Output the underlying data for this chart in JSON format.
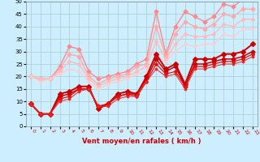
{
  "xlabel": "Vent moyen/en rafales ( km/h )",
  "xlim": [
    -0.5,
    23.5
  ],
  "ylim": [
    0,
    50
  ],
  "xticks": [
    0,
    1,
    2,
    3,
    4,
    5,
    6,
    7,
    8,
    9,
    10,
    11,
    12,
    13,
    14,
    15,
    16,
    17,
    18,
    19,
    20,
    21,
    22,
    23
  ],
  "yticks": [
    0,
    5,
    10,
    15,
    20,
    25,
    30,
    35,
    40,
    45,
    50
  ],
  "bg_color": "#cceeff",
  "grid_color": "#aacccc",
  "series_light": [
    {
      "x": [
        0,
        1,
        2,
        3,
        4,
        5,
        6,
        7,
        8,
        9,
        10,
        11,
        12,
        13,
        14,
        15,
        16,
        17,
        18,
        19,
        20,
        21,
        22,
        23
      ],
      "y": [
        20,
        19,
        19,
        24,
        32,
        31,
        22,
        19,
        20,
        21,
        22,
        25,
        27,
        46,
        29,
        40,
        46,
        44,
        42,
        44,
        49,
        48,
        51,
        51
      ],
      "color": "#ff8888",
      "lw": 1.0,
      "ms": 2.5
    },
    {
      "x": [
        0,
        1,
        2,
        3,
        4,
        5,
        6,
        7,
        8,
        9,
        10,
        11,
        12,
        13,
        14,
        15,
        16,
        17,
        18,
        19,
        20,
        21,
        22,
        23
      ],
      "y": [
        20,
        19,
        19,
        23,
        29,
        28,
        20,
        17,
        19,
        20,
        21,
        24,
        25,
        40,
        28,
        37,
        42,
        40,
        39,
        41,
        45,
        44,
        47,
        47
      ],
      "color": "#ffaaaa",
      "lw": 1.0,
      "ms": 2.5
    },
    {
      "x": [
        0,
        1,
        2,
        3,
        4,
        5,
        6,
        7,
        8,
        9,
        10,
        11,
        12,
        13,
        14,
        15,
        16,
        17,
        18,
        19,
        20,
        21,
        22,
        23
      ],
      "y": [
        20,
        19,
        19,
        22,
        26,
        25,
        19,
        16,
        18,
        19,
        20,
        22,
        24,
        34,
        27,
        33,
        37,
        36,
        36,
        37,
        41,
        40,
        43,
        43
      ],
      "color": "#ffbbbb",
      "lw": 1.0,
      "ms": 2.0
    },
    {
      "x": [
        0,
        1,
        2,
        3,
        4,
        5,
        6,
        7,
        8,
        9,
        10,
        11,
        12,
        13,
        14,
        15,
        16,
        17,
        18,
        19,
        20,
        21,
        22,
        23
      ],
      "y": [
        20,
        18,
        19,
        21,
        23,
        22,
        18,
        15,
        17,
        18,
        19,
        21,
        22,
        28,
        26,
        30,
        33,
        32,
        33,
        33,
        37,
        36,
        39,
        39
      ],
      "color": "#ffcccc",
      "lw": 0.9,
      "ms": 1.5
    }
  ],
  "series_dark": [
    {
      "x": [
        0,
        1,
        2,
        3,
        4,
        5,
        6,
        7,
        8,
        9,
        10,
        11,
        12,
        13,
        14,
        15,
        16,
        17,
        18,
        19,
        20,
        21,
        22,
        23
      ],
      "y": [
        9,
        5,
        5,
        13,
        14,
        16,
        16,
        7,
        9,
        13,
        14,
        13,
        20,
        29,
        23,
        25,
        17,
        27,
        27,
        27,
        29,
        29,
        30,
        33
      ],
      "color": "#cc0000",
      "lw": 1.4,
      "ms": 3.0
    },
    {
      "x": [
        0,
        1,
        2,
        3,
        4,
        5,
        6,
        7,
        8,
        9,
        10,
        11,
        12,
        13,
        14,
        15,
        16,
        17,
        18,
        19,
        20,
        21,
        22,
        23
      ],
      "y": [
        9,
        5,
        5,
        12,
        13,
        15,
        15,
        8,
        9,
        12,
        13,
        13,
        19,
        27,
        22,
        24,
        16,
        25,
        25,
        26,
        27,
        27,
        28,
        30
      ],
      "color": "#cc0000",
      "lw": 1.1,
      "ms": 2.5
    },
    {
      "x": [
        0,
        1,
        2,
        3,
        4,
        5,
        6,
        7,
        8,
        9,
        10,
        11,
        12,
        13,
        14,
        15,
        16,
        17,
        18,
        19,
        20,
        21,
        22,
        23
      ],
      "y": [
        9,
        5,
        5,
        11,
        12,
        15,
        15,
        8,
        9,
        12,
        13,
        12,
        18,
        25,
        21,
        22,
        16,
        24,
        24,
        25,
        26,
        26,
        27,
        29
      ],
      "color": "#dd1111",
      "lw": 0.9,
      "ms": 2.0
    },
    {
      "x": [
        0,
        1,
        2,
        3,
        4,
        5,
        6,
        7,
        8,
        9,
        10,
        11,
        12,
        13,
        14,
        15,
        16,
        17,
        18,
        19,
        20,
        21,
        22,
        23
      ],
      "y": [
        9,
        5,
        5,
        10,
        11,
        14,
        15,
        8,
        8,
        11,
        12,
        12,
        18,
        23,
        20,
        21,
        15,
        23,
        23,
        24,
        25,
        25,
        26,
        28
      ],
      "color": "#ee2222",
      "lw": 0.7,
      "ms": 1.5
    }
  ]
}
